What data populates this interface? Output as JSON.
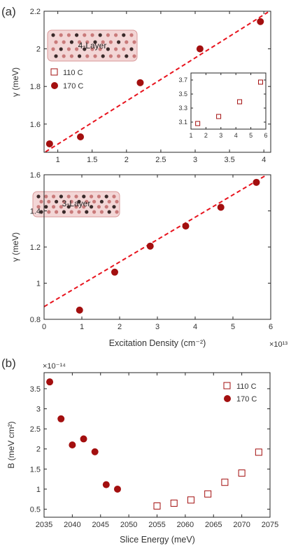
{
  "colors": {
    "marker": "#a30f0f",
    "fit_line": "#e8141e",
    "axis": "#262626",
    "text": "#333333",
    "structure": "#d99a9a"
  },
  "panel_labels": {
    "a": "(a)",
    "b": "(b)"
  },
  "chart_data": [
    {
      "type": "scatter",
      "ylabel": "γ (meV)",
      "xlim": [
        0.8,
        4.1
      ],
      "ylim": [
        1.45,
        2.2
      ],
      "xticks": [
        "1",
        "1.5",
        "2",
        "2.5",
        "3",
        "3.5",
        "4"
      ],
      "yticks": [
        "1.6",
        "1.8",
        "2",
        "2.2"
      ],
      "structure_label": "4-Layer",
      "legend": {
        "position": "left",
        "entries": [
          "110 C",
          "170 C"
        ]
      },
      "series": [
        {
          "name": "170 C",
          "marker": "filled-circle",
          "x": [
            0.88,
            1.33,
            2.2,
            3.07,
            3.95
          ],
          "y": [
            1.495,
            1.532,
            1.82,
            2.0,
            2.145
          ]
        }
      ],
      "fit_line": {
        "x": [
          0.82,
          4.06
        ],
        "y": [
          1.452,
          2.195
        ]
      },
      "inset": {
        "type": "scatter",
        "xlim": [
          1,
          6
        ],
        "ylim": [
          3.0,
          3.8
        ],
        "xticks": [
          "1",
          "2",
          "3",
          "4",
          "5",
          "6"
        ],
        "yticks": [
          "3.1",
          "3.3",
          "3.5",
          "3.7"
        ],
        "series": [
          {
            "name": "110 C",
            "marker": "open-square",
            "x": [
              1.45,
              2.85,
              4.25,
              5.65
            ],
            "y": [
              3.08,
              3.18,
              3.39,
              3.67
            ]
          }
        ]
      }
    },
    {
      "type": "scatter",
      "xlabel": "Excitation Density (cm⁻²)",
      "ylabel": "γ (meV)",
      "x_multiplier": "×10¹³",
      "xlim": [
        0,
        6
      ],
      "ylim": [
        0.8,
        1.6
      ],
      "xticks": [
        "0",
        "1",
        "2",
        "3",
        "4",
        "5",
        "6"
      ],
      "yticks": [
        "0.8",
        "1",
        "1.2",
        "1.4",
        "1.6"
      ],
      "structure_label": "3-Layer",
      "series": [
        {
          "name": "170 C",
          "marker": "filled-circle",
          "x": [
            0.94,
            1.87,
            2.81,
            3.75,
            4.68,
            5.62
          ],
          "y": [
            0.851,
            1.061,
            1.205,
            1.316,
            1.42,
            1.558
          ]
        }
      ],
      "fit_line": {
        "x": [
          0,
          5.9
        ],
        "y": [
          0.87,
          1.6
        ]
      }
    },
    {
      "type": "scatter",
      "xlabel": "Slice Energy (meV)",
      "ylabel": "B (meV cm²)",
      "y_multiplier": "×10⁻¹⁴",
      "xlim": [
        2035,
        2075
      ],
      "ylim": [
        0.3,
        3.9
      ],
      "xticks": [
        "2035",
        "2040",
        "2045",
        "2050",
        "2055",
        "2060",
        "2065",
        "2070",
        "2075"
      ],
      "yticks": [
        "0.5",
        "1",
        "1.5",
        "2",
        "2.5",
        "3",
        "3.5"
      ],
      "legend": {
        "position": "top-right",
        "entries": [
          "110 C",
          "170 C"
        ]
      },
      "series": [
        {
          "name": "110 C",
          "marker": "open-square",
          "x": [
            2055,
            2058,
            2061,
            2064,
            2067,
            2070,
            2073
          ],
          "y": [
            0.58,
            0.65,
            0.73,
            0.88,
            1.17,
            1.4,
            1.92
          ]
        },
        {
          "name": "170 C",
          "marker": "filled-circle",
          "x": [
            2036,
            2038,
            2040,
            2042,
            2044,
            2046,
            2048
          ],
          "y": [
            3.67,
            2.75,
            2.1,
            2.25,
            1.93,
            1.11,
            1.0
          ]
        }
      ]
    }
  ]
}
